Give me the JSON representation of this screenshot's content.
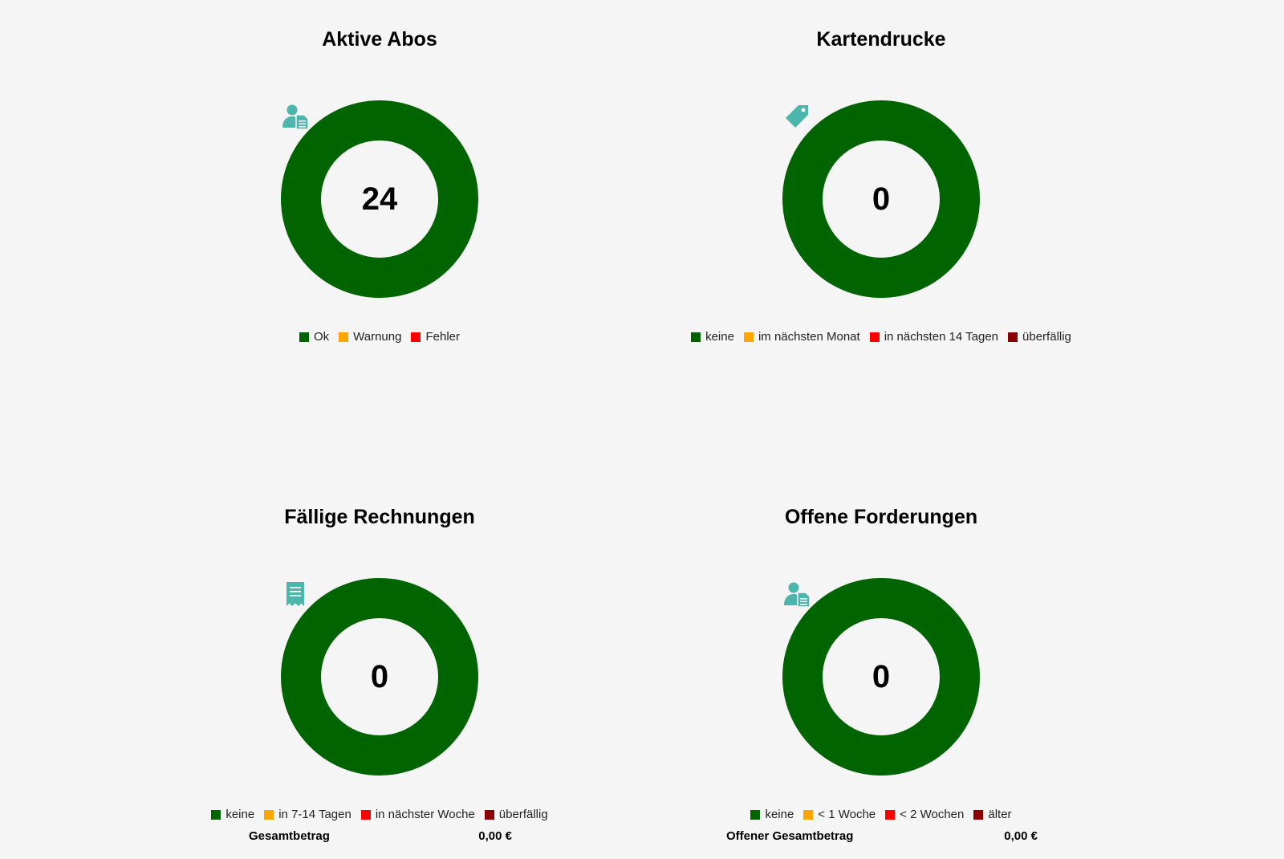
{
  "colors": {
    "ok_green": "#006400",
    "warning_orange": "#ffa500",
    "error_red": "#ff0000",
    "dark_red": "#8b0000",
    "icon_teal": "#4db6ac"
  },
  "panels": {
    "aktive_abos": {
      "title": "Aktive Abos",
      "count": "24",
      "icon": "subscriber-document-icon",
      "legend": [
        {
          "label": "Ok",
          "color": "#006400"
        },
        {
          "label": "Warnung",
          "color": "#ffa500"
        },
        {
          "label": "Fehler",
          "color": "#ff0000"
        }
      ]
    },
    "kartendrucke": {
      "title": "Kartendrucke",
      "count": "0",
      "icon": "tag-icon",
      "legend": [
        {
          "label": "keine",
          "color": "#006400"
        },
        {
          "label": "im nächsten Monat",
          "color": "#ffa500"
        },
        {
          "label": "in nächsten 14 Tagen",
          "color": "#ff0000"
        },
        {
          "label": "überfällig",
          "color": "#8b0000"
        }
      ]
    },
    "faellige_rechnungen": {
      "title": "Fällige Rechnungen",
      "count": "0",
      "icon": "receipt-icon",
      "legend": [
        {
          "label": "keine",
          "color": "#006400"
        },
        {
          "label": "in 7-14 Tagen",
          "color": "#ffa500"
        },
        {
          "label": "in nächster Woche",
          "color": "#ff0000"
        },
        {
          "label": "überfällig",
          "color": "#8b0000"
        }
      ],
      "total_label": "Gesamtbetrag",
      "total_value": "0,00 €"
    },
    "offene_forderungen": {
      "title": "Offene Forderungen",
      "count": "0",
      "icon": "subscriber-document-icon",
      "legend": [
        {
          "label": "keine",
          "color": "#006400"
        },
        {
          "label": "< 1 Woche",
          "color": "#ffa500"
        },
        {
          "label": "< 2 Wochen",
          "color": "#ff0000"
        },
        {
          "label": "älter",
          "color": "#8b0000"
        }
      ],
      "total_label": "Offener Gesamtbetrag",
      "total_value": "0,00 €"
    }
  }
}
